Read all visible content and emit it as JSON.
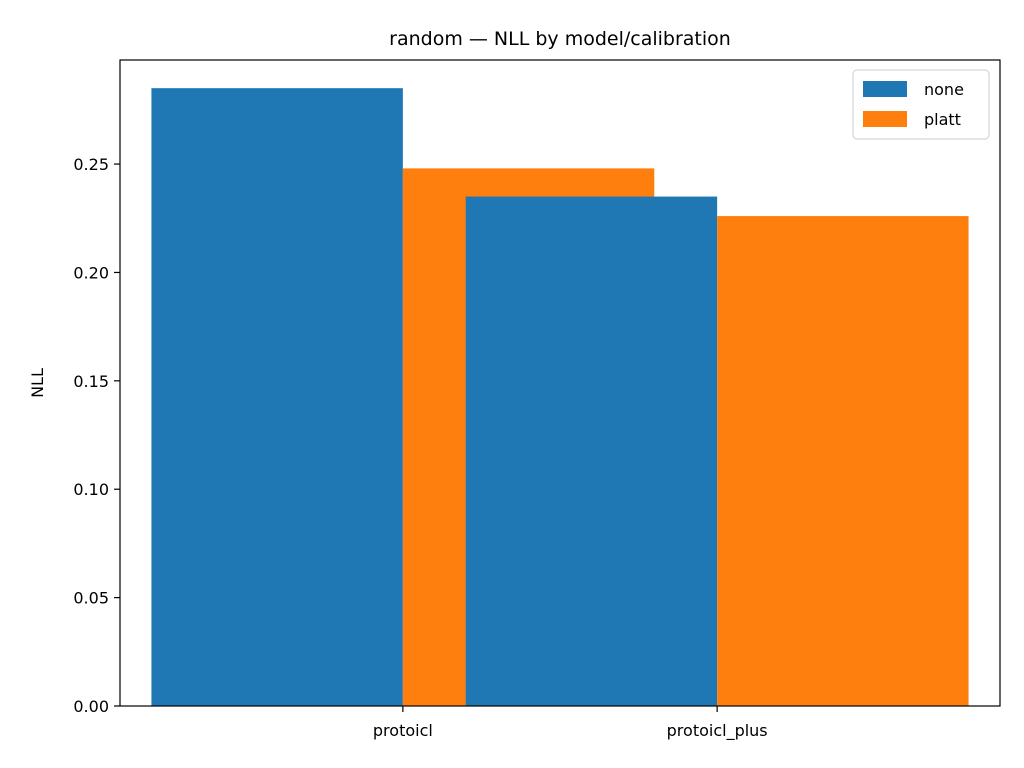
{
  "chart_data": {
    "type": "bar",
    "title": "random — NLL by model/calibration",
    "xlabel": "",
    "ylabel": "NLL",
    "categories": [
      "protoicl",
      "protoicl_plus"
    ],
    "series": [
      {
        "name": "none",
        "color": "#1f77b4",
        "values": [
          0.285,
          0.235
        ]
      },
      {
        "name": "platt",
        "color": "#ff7f0e",
        "values": [
          0.248,
          0.226
        ]
      }
    ],
    "ylim": [
      0,
      0.298
    ],
    "yticks": [
      "0.00",
      "0.05",
      "0.10",
      "0.15",
      "0.20",
      "0.25"
    ],
    "grid": false,
    "legend_position": "top-right"
  }
}
